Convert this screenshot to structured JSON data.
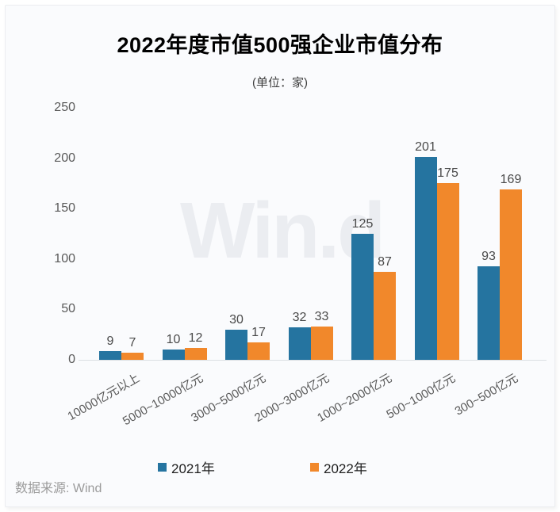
{
  "chart_data": {
    "type": "bar",
    "title": "2022年度市值500强企业市值分布",
    "subtitle": "(单位：家)",
    "categories": [
      "10000亿元以上",
      "5000~10000亿元",
      "3000~5000亿元",
      "2000~3000亿元",
      "1000~2000亿元",
      "500~1000亿元",
      "300~500亿元"
    ],
    "series": [
      {
        "name": "2021年",
        "color": "#2574A0",
        "values": [
          9,
          10,
          30,
          32,
          125,
          201,
          93
        ]
      },
      {
        "name": "2022年",
        "color": "#F1882B",
        "values": [
          7,
          12,
          17,
          33,
          87,
          175,
          169
        ]
      }
    ],
    "ylim": [
      0,
      250
    ],
    "yticks": [
      0,
      50,
      100,
      150,
      200,
      250
    ],
    "grid": false,
    "legend_position": "bottom",
    "source": "数据来源: Wind",
    "watermark": "Win.d"
  },
  "colors": {
    "series_2021": "#2574A0",
    "series_2022": "#F1882B",
    "card_background": "#fafbfd",
    "axis_text": "#595959",
    "watermark": "#ebedf1"
  }
}
